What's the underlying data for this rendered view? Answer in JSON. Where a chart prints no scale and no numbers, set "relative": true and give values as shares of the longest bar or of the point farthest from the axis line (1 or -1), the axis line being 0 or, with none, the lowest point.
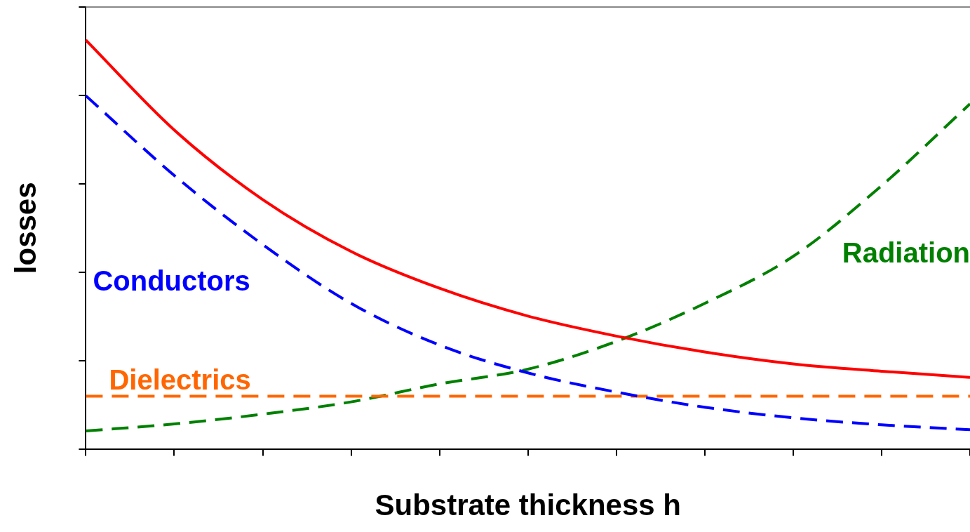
{
  "chart_data": {
    "type": "line",
    "relative": true,
    "xlabel": "Substrate thickness h",
    "ylabel": "losses",
    "categories": [
      null,
      null,
      null,
      null,
      null,
      null,
      null,
      null,
      null,
      null,
      null
    ],
    "series": [
      {
        "color": "#ff0000",
        "line_style": "solid",
        "values": [
          1,
          0.78,
          0.61,
          0.483,
          0.393,
          0.325,
          0.276,
          0.237,
          0.208,
          0.19,
          0.175
        ]
      },
      {
        "name": "Conductors",
        "color": "#0000ff",
        "line_style": "dashed",
        "values": [
          0.864,
          0.669,
          0.5,
          0.356,
          0.254,
          0.186,
          0.139,
          0.102,
          0.076,
          0.059,
          0.047
        ]
      },
      {
        "name": "Dielectrics",
        "color": "#ff6600",
        "line_style": "dashed",
        "values": [
          0.129,
          0.129,
          0.129,
          0.129,
          0.129,
          0.129,
          0.129,
          0.129,
          0.129,
          0.129,
          0.129
        ]
      },
      {
        "name": "Radiation",
        "color": "#008000",
        "line_style": "dashed",
        "values": [
          0.044,
          0.061,
          0.085,
          0.115,
          0.159,
          0.195,
          0.263,
          0.356,
          0.471,
          0.644,
          0.844
        ]
      }
    ],
    "grid": false,
    "legend": false,
    "marker": "none",
    "tick_labels": false
  }
}
